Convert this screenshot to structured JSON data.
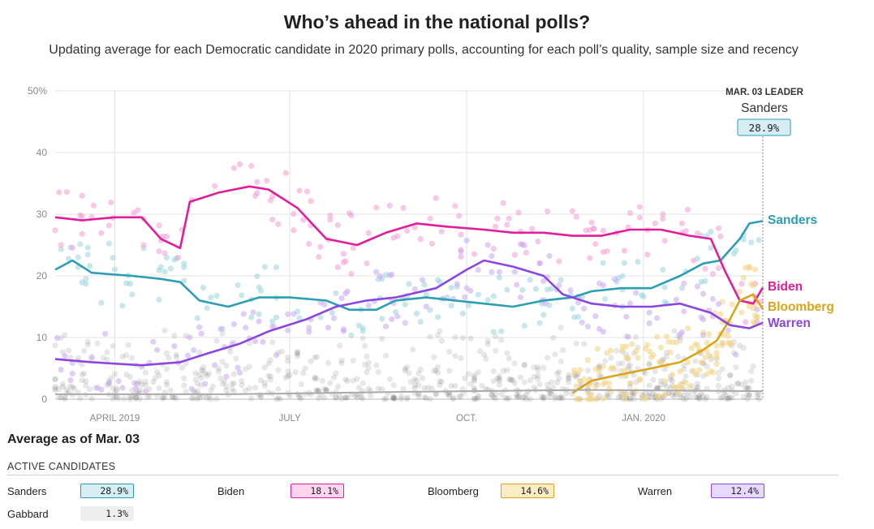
{
  "header": {
    "title": "Who’s ahead in the national polls?",
    "subtitle": "Updating average for each Democratic candidate in 2020 primary polls, accounting for each poll’s quality, sample size and recency"
  },
  "chart_data": {
    "type": "line",
    "x_range": [
      "2019-03-01",
      "2020-03-03"
    ],
    "ylim": [
      0,
      50
    ],
    "y_ticks": [
      0,
      10,
      20,
      30,
      40,
      50
    ],
    "y_tick_labels": [
      "0",
      "10",
      "20",
      "30",
      "40",
      "50%"
    ],
    "x_ticks": [
      {
        "date": "2019-04-01",
        "label": "APRIL 2019"
      },
      {
        "date": "2019-07-01",
        "label": "JULY"
      },
      {
        "date": "2019-10-01",
        "label": "OCT."
      },
      {
        "date": "2020-01-01",
        "label": "JAN. 2020"
      }
    ],
    "grid": true,
    "leader": {
      "heading": "MAR. 03 LEADER",
      "name": "Sanders",
      "value": "28.9%"
    },
    "series": [
      {
        "name": "Sanders",
        "color": "#2b9fb1",
        "dot_color": "#9ad3de",
        "points": [
          [
            "2019-03-01",
            21
          ],
          [
            "2019-03-10",
            22.5
          ],
          [
            "2019-03-20",
            20.5
          ],
          [
            "2019-04-10",
            20
          ],
          [
            "2019-04-25",
            19.5
          ],
          [
            "2019-05-05",
            19
          ],
          [
            "2019-05-15",
            16
          ],
          [
            "2019-05-30",
            15
          ],
          [
            "2019-06-15",
            16.5
          ],
          [
            "2019-07-01",
            16.5
          ],
          [
            "2019-07-20",
            16
          ],
          [
            "2019-08-01",
            14.5
          ],
          [
            "2019-08-15",
            14.5
          ],
          [
            "2019-08-25",
            16
          ],
          [
            "2019-09-10",
            16.5
          ],
          [
            "2019-09-25",
            16
          ],
          [
            "2019-10-10",
            15.5
          ],
          [
            "2019-10-25",
            15
          ],
          [
            "2019-11-10",
            16
          ],
          [
            "2019-11-25",
            16.5
          ],
          [
            "2019-12-05",
            17.5
          ],
          [
            "2019-12-20",
            18
          ],
          [
            "2020-01-05",
            18
          ],
          [
            "2020-01-20",
            20
          ],
          [
            "2020-02-01",
            22
          ],
          [
            "2020-02-10",
            22.5
          ],
          [
            "2020-02-20",
            26
          ],
          [
            "2020-02-25",
            28.5
          ],
          [
            "2020-03-03",
            28.9
          ]
        ]
      },
      {
        "name": "Biden",
        "color": "#e11d99",
        "dot_color": "#f19bd6",
        "points": [
          [
            "2019-03-01",
            29.5
          ],
          [
            "2019-03-15",
            29
          ],
          [
            "2019-04-01",
            29.5
          ],
          [
            "2019-04-15",
            29.5
          ],
          [
            "2019-04-25",
            26
          ],
          [
            "2019-05-05",
            24.5
          ],
          [
            "2019-05-10",
            32
          ],
          [
            "2019-05-25",
            33.5
          ],
          [
            "2019-06-10",
            34.5
          ],
          [
            "2019-06-20",
            34
          ],
          [
            "2019-07-05",
            31
          ],
          [
            "2019-07-20",
            26
          ],
          [
            "2019-08-05",
            25
          ],
          [
            "2019-08-20",
            27
          ],
          [
            "2019-09-05",
            28.5
          ],
          [
            "2019-09-20",
            28
          ],
          [
            "2019-10-10",
            27.5
          ],
          [
            "2019-10-25",
            27
          ],
          [
            "2019-11-10",
            27
          ],
          [
            "2019-11-25",
            26.5
          ],
          [
            "2019-12-10",
            26.5
          ],
          [
            "2019-12-25",
            27.5
          ],
          [
            "2020-01-10",
            27.5
          ],
          [
            "2020-01-25",
            26.5
          ],
          [
            "2020-02-05",
            26
          ],
          [
            "2020-02-12",
            21
          ],
          [
            "2020-02-20",
            16
          ],
          [
            "2020-02-27",
            15.5
          ],
          [
            "2020-03-03",
            18.1
          ]
        ]
      },
      {
        "name": "Bloomberg",
        "color": "#d9a418",
        "dot_color": "#f3d27f",
        "points": [
          [
            "2019-11-25",
            1
          ],
          [
            "2019-12-05",
            3
          ],
          [
            "2019-12-20",
            4
          ],
          [
            "2020-01-05",
            5
          ],
          [
            "2020-01-20",
            6
          ],
          [
            "2020-02-01",
            8
          ],
          [
            "2020-02-08",
            9.5
          ],
          [
            "2020-02-15",
            13
          ],
          [
            "2020-02-20",
            16
          ],
          [
            "2020-02-27",
            17
          ],
          [
            "2020-03-03",
            14.6
          ]
        ]
      },
      {
        "name": "Warren",
        "color": "#8b46e0",
        "dot_color": "#c9a6f1",
        "points": [
          [
            "2019-03-01",
            6.5
          ],
          [
            "2019-03-20",
            6
          ],
          [
            "2019-04-15",
            5.5
          ],
          [
            "2019-05-05",
            6
          ],
          [
            "2019-05-20",
            7.5
          ],
          [
            "2019-06-05",
            9
          ],
          [
            "2019-06-20",
            11
          ],
          [
            "2019-07-10",
            13
          ],
          [
            "2019-07-25",
            15
          ],
          [
            "2019-08-10",
            16
          ],
          [
            "2019-08-25",
            16.5
          ],
          [
            "2019-09-15",
            18
          ],
          [
            "2019-10-01",
            21
          ],
          [
            "2019-10-10",
            22.5
          ],
          [
            "2019-10-25",
            21.5
          ],
          [
            "2019-11-10",
            20
          ],
          [
            "2019-11-20",
            17
          ],
          [
            "2019-12-05",
            15.5
          ],
          [
            "2019-12-20",
            15
          ],
          [
            "2020-01-05",
            15
          ],
          [
            "2020-01-20",
            15.5
          ],
          [
            "2020-02-05",
            14
          ],
          [
            "2020-02-15",
            12
          ],
          [
            "2020-02-25",
            11.5
          ],
          [
            "2020-03-03",
            12.4
          ]
        ]
      },
      {
        "name": "Gabbard",
        "color": "#aaaaaa",
        "dot_color": "#cccccc",
        "points": [
          [
            "2019-03-01",
            0.8
          ],
          [
            "2019-06-01",
            0.8
          ],
          [
            "2019-09-01",
            1.2
          ],
          [
            "2019-12-01",
            1.5
          ],
          [
            "2020-03-03",
            1.3
          ]
        ]
      }
    ],
    "end_labels": [
      "Sanders",
      "Biden",
      "Bloomberg",
      "Warren"
    ]
  },
  "average": {
    "title": "Average as of Mar. 03",
    "section_label": "ACTIVE CANDIDATES",
    "candidates": [
      {
        "name": "Sanders",
        "value": "28.9%",
        "bg": "#d6eef3",
        "border": "#2b9fb1"
      },
      {
        "name": "Biden",
        "value": "18.1%",
        "bg": "#fbd4ee",
        "border": "#e11d99"
      },
      {
        "name": "Bloomberg",
        "value": "14.6%",
        "bg": "#fbecc6",
        "border": "#d9a418"
      },
      {
        "name": "Warren",
        "value": "12.4%",
        "bg": "#e6d9fb",
        "border": "#8b46e0"
      },
      {
        "name": "Gabbard",
        "value": "1.3%",
        "bg": "#eeeeee",
        "border": "#eeeeee"
      }
    ]
  }
}
